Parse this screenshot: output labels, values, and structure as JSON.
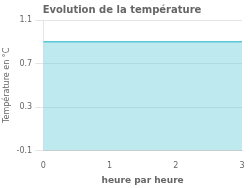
{
  "chart_data": {
    "type": "area",
    "title": "Evolution de la température",
    "xlabel": "heure par heure",
    "ylabel": "Température en °C",
    "x": [
      0,
      3
    ],
    "series": [
      {
        "values": [
          0.9,
          0.9
        ],
        "color": "#5bc8d8"
      }
    ],
    "xlim": [
      0,
      3
    ],
    "ylim": [
      -0.1,
      1.1
    ],
    "xticks": [
      0,
      1,
      2,
      3
    ],
    "yticks": [
      -0.1,
      0.3,
      0.7,
      1.1
    ],
    "grid": "y"
  }
}
